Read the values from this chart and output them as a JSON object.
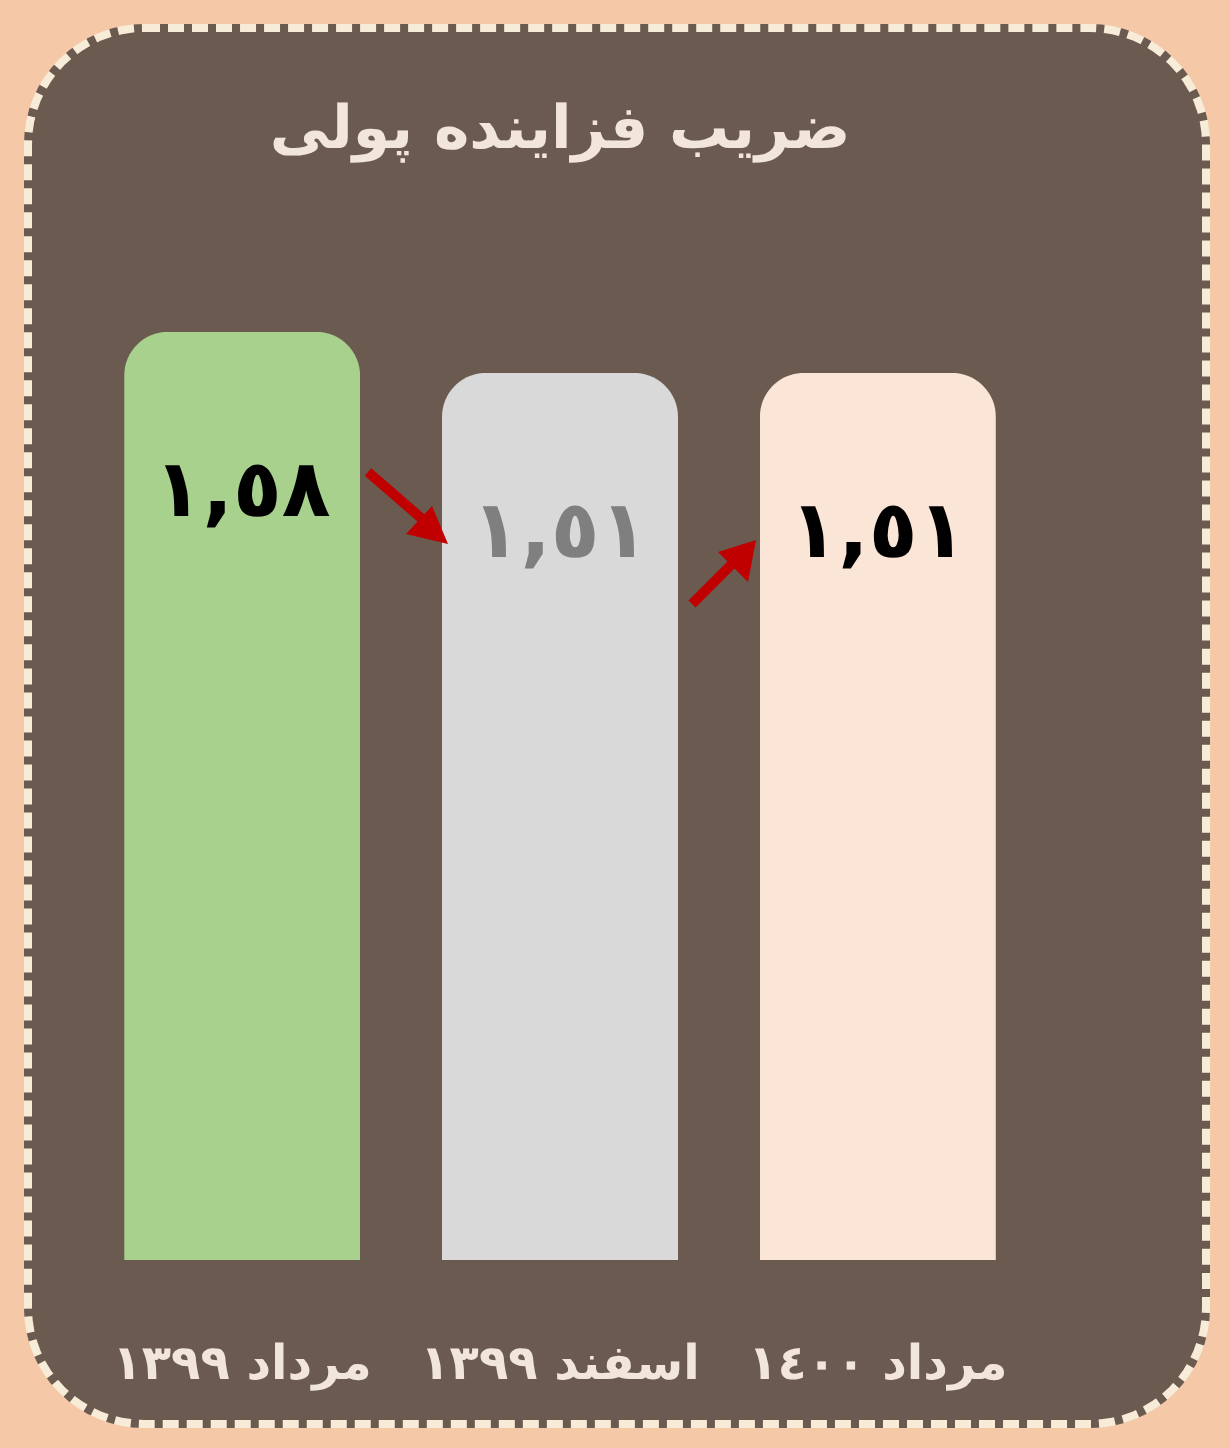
{
  "chart_data": {
    "type": "bar",
    "title": "ضریب فزاینده پولی",
    "categories": [
      "مرداد ١٣٩٩",
      "اسفند ١٣٩٩",
      "مرداد ١٤٠٠"
    ],
    "values": [
      1.58,
      1.51,
      1.51
    ],
    "colors": [
      "#a9d18e",
      "#d9d9d9",
      "#fbe5d6"
    ],
    "value_labels": [
      "١,٥٨",
      "١,٥١",
      "١,٥١"
    ]
  }
}
